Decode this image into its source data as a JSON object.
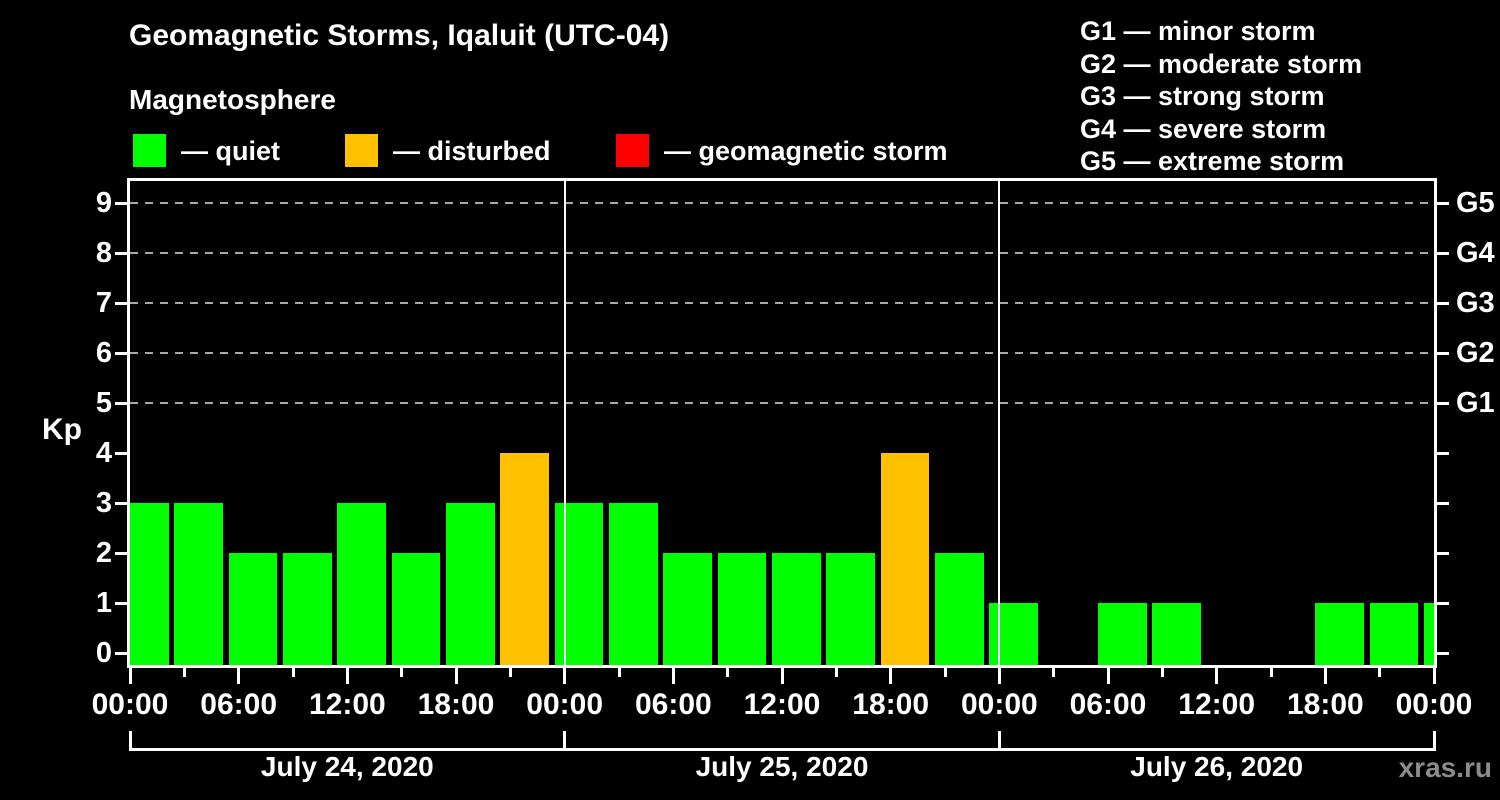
{
  "header": {
    "title": "Geomagnetic Storms, Iqaluit (UTC-04)",
    "subtitle": "Magnetosphere"
  },
  "legend": {
    "items": [
      {
        "name": "quiet",
        "label": "— quiet",
        "color": "#00FF00"
      },
      {
        "name": "disturbed",
        "label": "— disturbed",
        "color": "#FFC000"
      },
      {
        "name": "storm",
        "label": "— geomagnetic storm",
        "color": "#FF0000"
      }
    ]
  },
  "storm_scale_legend": {
    "lines": [
      "G1 — minor storm",
      "G2 — moderate storm",
      "G3 — strong storm",
      "G4 — severe storm",
      "G5 — extreme storm"
    ]
  },
  "watermark": "xras.ru",
  "chart_data": {
    "type": "bar",
    "title": "Geomagnetic Storms, Iqaluit (UTC-04)",
    "subtitle": "Magnetosphere",
    "ylabel": "Kp",
    "ylim": [
      0,
      9
    ],
    "y_ticks": [
      0,
      1,
      2,
      3,
      4,
      5,
      6,
      7,
      8,
      9
    ],
    "grid_levels": [
      5,
      6,
      7,
      8,
      9
    ],
    "grid_style": "dashed",
    "legend_position": "top",
    "right_axis": [
      {
        "label": "G1",
        "kp": 5
      },
      {
        "label": "G2",
        "kp": 6
      },
      {
        "label": "G3",
        "kp": 7
      },
      {
        "label": "G4",
        "kp": 8
      },
      {
        "label": "G5",
        "kp": 9
      }
    ],
    "x_tick_labels": [
      "00:00",
      "06:00",
      "12:00",
      "18:00",
      "00:00",
      "06:00",
      "12:00",
      "18:00",
      "00:00",
      "06:00",
      "12:00",
      "18:00",
      "00:00"
    ],
    "slot_hours": 3,
    "days": [
      {
        "date": "July 24, 2020",
        "values": [
          3,
          3,
          2,
          2,
          3,
          2,
          3,
          4
        ],
        "statuses": [
          "quiet",
          "quiet",
          "quiet",
          "quiet",
          "quiet",
          "quiet",
          "quiet",
          "disturbed"
        ]
      },
      {
        "date": "July 25, 2020",
        "values": [
          3,
          3,
          2,
          2,
          2,
          2,
          4,
          2
        ],
        "statuses": [
          "quiet",
          "quiet",
          "quiet",
          "quiet",
          "quiet",
          "quiet",
          "disturbed",
          "quiet"
        ]
      },
      {
        "date": "July 26, 2020",
        "values": [
          1,
          0,
          1,
          1,
          0,
          0,
          1,
          1
        ],
        "statuses": [
          "quiet",
          "quiet",
          "quiet",
          "quiet",
          "quiet",
          "quiet",
          "quiet",
          "quiet"
        ]
      }
    ],
    "next_day_partial_bar": {
      "value": 1,
      "status": "quiet"
    },
    "colors": {
      "quiet": "#00FF00",
      "disturbed": "#FFC000",
      "storm": "#FF0000",
      "grid": "#A8A8A8",
      "axis": "#FFFFFF",
      "background": "#000000",
      "watermark": "#8C8C8C"
    }
  }
}
